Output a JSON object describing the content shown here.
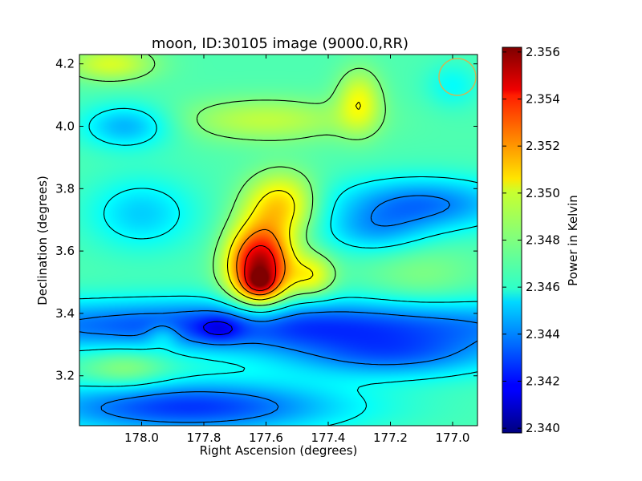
{
  "chart_data": {
    "type": "heatmap",
    "title": "moon, ID:30105 image (9000.0,RR)",
    "xlabel": "Right Ascension (degrees)",
    "ylabel": "Declination (degrees)",
    "xlim": [
      178.2,
      176.92
    ],
    "ylim": [
      3.04,
      4.23
    ],
    "x_ticks": [
      178.0,
      177.8,
      177.6,
      177.4,
      177.2,
      177.0
    ],
    "x_tick_labels": [
      "178.0",
      "177.8",
      "177.6",
      "177.4",
      "177.2",
      "177.0"
    ],
    "y_ticks": [
      3.2,
      3.4,
      3.6,
      3.8,
      4.0,
      4.2
    ],
    "y_tick_labels": [
      "3.2",
      "3.4",
      "3.6",
      "3.8",
      "4.0",
      "4.2"
    ],
    "colormap": "jet",
    "contours": true,
    "colorbar": {
      "label": "Power in Kelvin",
      "range": [
        2.3398,
        2.3562
      ],
      "ticks": [
        2.34,
        2.342,
        2.344,
        2.346,
        2.348,
        2.35,
        2.352,
        2.354,
        2.356
      ],
      "tick_labels": [
        "2.340",
        "2.342",
        "2.344",
        "2.346",
        "2.348",
        "2.350",
        "2.352",
        "2.354",
        "2.356"
      ]
    },
    "background": 2.3472,
    "features": [
      {
        "ra": 177.62,
        "dec": 3.55,
        "sx": 0.07,
        "sy": 0.09,
        "amp": 0.0085
      },
      {
        "ra": 177.55,
        "dec": 3.75,
        "sx": 0.08,
        "sy": 0.07,
        "amp": 0.0035
      },
      {
        "ra": 177.45,
        "dec": 3.52,
        "sx": 0.05,
        "sy": 0.05,
        "amp": 0.0025
      },
      {
        "ra": 177.62,
        "dec": 3.5,
        "sx": 0.03,
        "sy": 0.025,
        "amp": 0.003
      },
      {
        "ra": 177.6,
        "dec": 3.36,
        "sx": 0.8,
        "sy": 0.06,
        "amp": -0.0045
      },
      {
        "ra": 177.2,
        "dec": 3.26,
        "sx": 0.25,
        "sy": 0.05,
        "amp": -0.003
      },
      {
        "ra": 177.85,
        "dec": 3.1,
        "sx": 0.35,
        "sy": 0.06,
        "amp": -0.0045
      },
      {
        "ra": 177.1,
        "dec": 3.75,
        "sx": 0.2,
        "sy": 0.06,
        "amp": -0.0035
      },
      {
        "ra": 177.25,
        "dec": 3.66,
        "sx": 0.12,
        "sy": 0.05,
        "amp": -0.002
      },
      {
        "ra": 178.0,
        "dec": 3.72,
        "sx": 0.12,
        "sy": 0.08,
        "amp": -0.002
      },
      {
        "ra": 178.05,
        "dec": 4.0,
        "sx": 0.1,
        "sy": 0.05,
        "amp": -0.0025
      },
      {
        "ra": 177.6,
        "dec": 4.02,
        "sx": 0.2,
        "sy": 0.05,
        "amp": 0.0018
      },
      {
        "ra": 177.3,
        "dec": 4.08,
        "sx": 0.05,
        "sy": 0.07,
        "amp": 0.0025
      },
      {
        "ra": 178.1,
        "dec": 4.2,
        "sx": 0.1,
        "sy": 0.04,
        "amp": 0.0022
      },
      {
        "ra": 177.0,
        "dec": 4.13,
        "sx": 0.06,
        "sy": 0.05,
        "amp": -0.0012
      },
      {
        "ra": 178.05,
        "dec": 3.22,
        "sx": 0.1,
        "sy": 0.05,
        "amp": 0.0015
      },
      {
        "ra": 177.1,
        "dec": 3.52,
        "sx": 0.12,
        "sy": 0.08,
        "amp": 0.0008
      },
      {
        "ra": 177.93,
        "dec": 3.33,
        "sx": 0.04,
        "sy": 0.03,
        "amp": 0.0015
      },
      {
        "ra": 177.75,
        "dec": 3.35,
        "sx": 0.05,
        "sy": 0.03,
        "amp": -0.0015
      }
    ],
    "contour_levels": [
      2.342,
      2.344,
      2.346,
      2.348,
      2.35,
      2.352,
      2.354
    ]
  }
}
